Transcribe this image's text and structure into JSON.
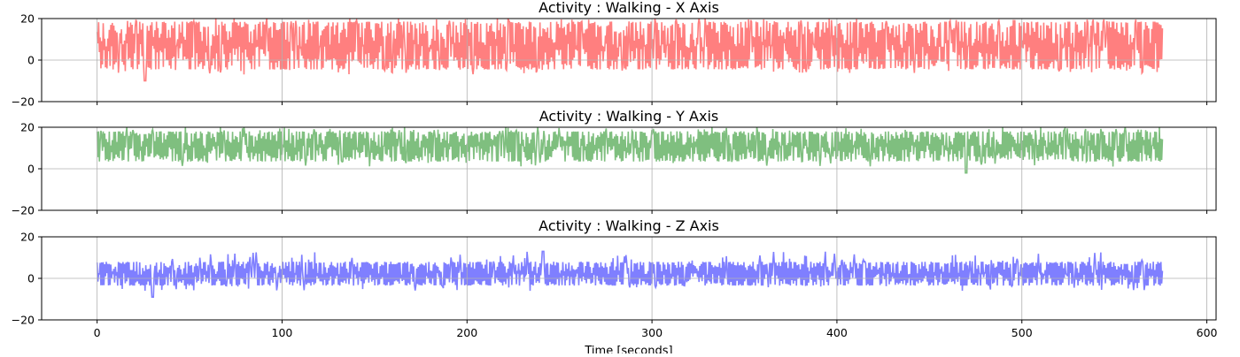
{
  "chart_data": [
    {
      "type": "line",
      "title": "Activity : Walking - X Axis",
      "xlim": [
        -30,
        605
      ],
      "ylim": [
        -20,
        20
      ],
      "yticks": [
        -20,
        0,
        20
      ],
      "xticks": [
        0,
        100,
        200,
        300,
        400,
        500,
        600
      ],
      "grid": true,
      "show_xtick_labels": false,
      "color": "#ff0000",
      "alpha": 0.5,
      "x_range": [
        0,
        576
      ],
      "band_low": -4.5,
      "band_high": 18.5,
      "min_value": -10,
      "min_at": 26,
      "max_value": 20
    },
    {
      "type": "line",
      "title": "Activity : Walking - Y Axis",
      "xlim": [
        -30,
        605
      ],
      "ylim": [
        -20,
        20
      ],
      "yticks": [
        -20,
        0,
        20
      ],
      "xticks": [
        0,
        100,
        200,
        300,
        400,
        500,
        600
      ],
      "grid": true,
      "show_xtick_labels": false,
      "color": "#008000",
      "alpha": 0.5,
      "x_range": [
        0,
        576
      ],
      "band_low": 3.5,
      "band_high": 18,
      "min_value": -2,
      "min_at": 470,
      "max_value": 20
    },
    {
      "type": "line",
      "title": "Activity : Walking - Z Axis",
      "xlim": [
        -30,
        605
      ],
      "ylim": [
        -20,
        20
      ],
      "yticks": [
        -20,
        0,
        20
      ],
      "xticks": [
        0,
        100,
        200,
        300,
        400,
        500,
        600
      ],
      "xtick_labels": [
        "0",
        "100",
        "200",
        "300",
        "400",
        "500",
        "600"
      ],
      "grid": true,
      "show_xtick_labels": true,
      "xlabel": "Time [seconds]",
      "color": "#0000ff",
      "alpha": 0.5,
      "x_range": [
        0,
        576
      ],
      "band_low": -3.5,
      "band_high": 8,
      "min_value": -9,
      "min_at": 30,
      "max_value": 13,
      "max_at": 241
    }
  ]
}
